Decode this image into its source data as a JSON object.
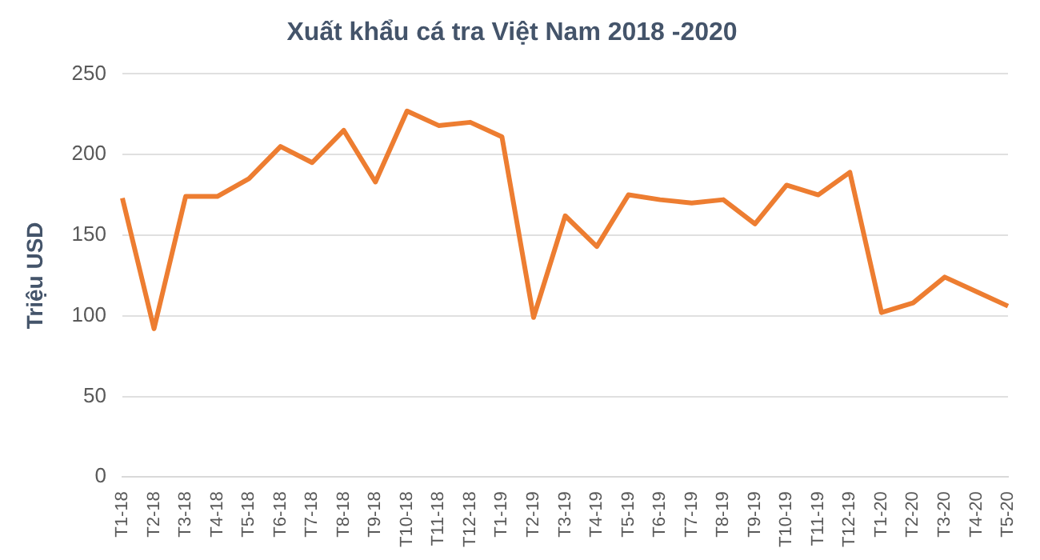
{
  "chart_data": {
    "type": "line",
    "title": "Xuất khẩu cá tra Việt Nam 2018 -2020",
    "ylabel": "Triệu USD",
    "categories": [
      "T1-18",
      "T2-18",
      "T3-18",
      "T4-18",
      "T5-18",
      "T6-18",
      "T7-18",
      "T8-18",
      "T9-18",
      "T10-18",
      "T11-18",
      "T12-18",
      "T1-19",
      "T2-19",
      "T3-19",
      "T4-19",
      "T5-19",
      "T6-19",
      "T7-19",
      "T8-19",
      "T9-19",
      "T10-19",
      "T11-19",
      "T12-19",
      "T1-20",
      "T2-20",
      "T3-20",
      "T4-20",
      "T5-20"
    ],
    "series": [
      {
        "color": "#ed7d31",
        "values": [
          173,
          92,
          174,
          174,
          185,
          205,
          195,
          215,
          183,
          227,
          218,
          220,
          211,
          99,
          162,
          143,
          175,
          172,
          170,
          172,
          157,
          181,
          175,
          189,
          102,
          108,
          124,
          115,
          106
        ]
      }
    ],
    "ylim": [
      0,
      250
    ],
    "yticks": [
      0,
      50,
      100,
      150,
      200,
      250
    ],
    "grid": "y",
    "legend": false,
    "marker": "none",
    "line_style": "solid"
  }
}
